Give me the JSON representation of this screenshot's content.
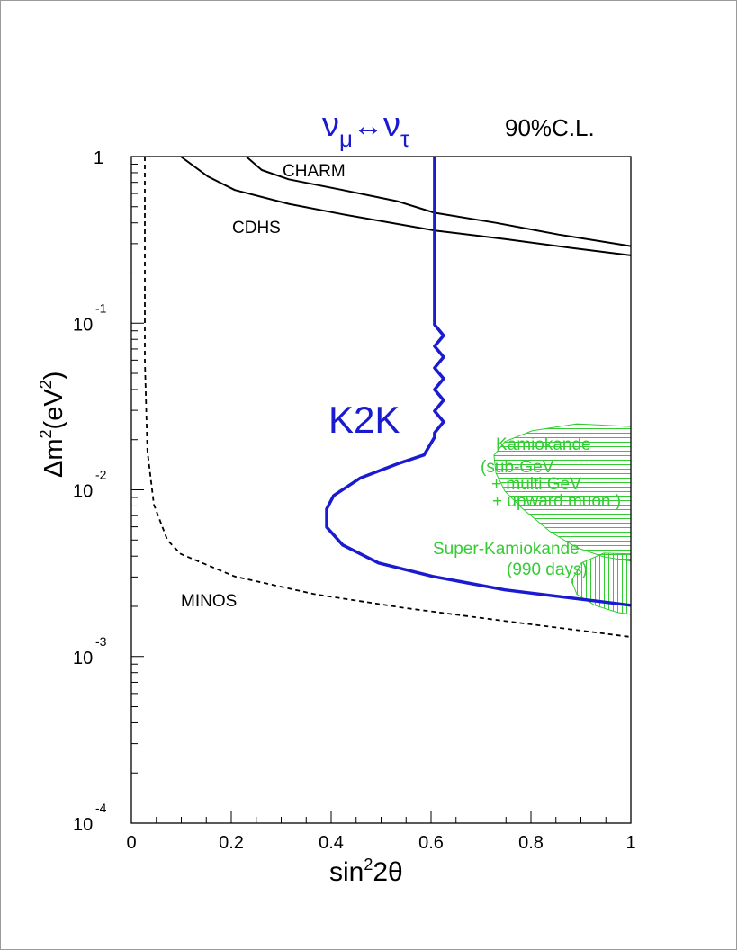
{
  "chart_data": {
    "type": "line",
    "title": "ν_μ↔ν_τ",
    "title_parts": {
      "nu1": "ν",
      "sub1": "μ",
      "arrow": "↔",
      "nu2": "ν",
      "sub2": "τ"
    },
    "confidence_label": "90%C.L.",
    "xlabel": "sin²2θ",
    "xlabel_parts": {
      "base": "sin",
      "sup": "2",
      "rest": "2θ"
    },
    "ylabel": "Δm²(eV²)",
    "ylabel_parts": {
      "a": "Δm",
      "sup1": "2",
      "b": "(eV",
      "sup2": "2",
      "c": ")"
    },
    "xlim": [
      0,
      1
    ],
    "ylim": [
      0.0001,
      1
    ],
    "yscale": "log",
    "grid": false,
    "x_ticks": [
      "0",
      "0.2",
      "0.4",
      "0.6",
      "0.8",
      "1"
    ],
    "y_ticks": [
      {
        "value": 1,
        "base": "1",
        "exp": ""
      },
      {
        "value": 0.1,
        "base": "10",
        "exp": "-1"
      },
      {
        "value": 0.01,
        "base": "10",
        "exp": "-2"
      },
      {
        "value": 0.001,
        "base": "10",
        "exp": "-3"
      },
      {
        "value": 0.0001,
        "base": "10",
        "exp": "-4"
      }
    ],
    "colors": {
      "k2k": "#1a1ad0",
      "kamiokande": "#33cc33",
      "axes": "#000000"
    },
    "series": [
      {
        "name": "CHARM",
        "style": "solid",
        "color": "#000000",
        "x": [
          0.23,
          0.261,
          0.315,
          0.423,
          0.532,
          0.607,
          0.73,
          0.856,
          1.0
        ],
        "y": [
          1.0,
          0.83,
          0.73,
          0.63,
          0.54,
          0.46,
          0.4,
          0.34,
          0.29
        ]
      },
      {
        "name": "CDHS",
        "style": "solid",
        "color": "#000000",
        "x": [
          0.099,
          0.153,
          0.207,
          0.315,
          0.423,
          0.607,
          0.748,
          0.892,
          1.0
        ],
        "y": [
          1.0,
          0.76,
          0.63,
          0.52,
          0.45,
          0.36,
          0.32,
          0.28,
          0.255
        ]
      },
      {
        "name": "MINOS",
        "style": "dashed",
        "color": "#000000",
        "x": [
          0.027,
          0.027,
          0.032,
          0.045,
          0.072,
          0.099,
          0.207,
          0.369,
          0.55,
          0.73,
          1.0
        ],
        "y": [
          1.0,
          0.0596,
          0.0172,
          0.00817,
          0.005,
          0.00412,
          0.00302,
          0.00236,
          0.00195,
          0.00166,
          0.00131
        ]
      },
      {
        "name": "K2K",
        "style": "solid-thick",
        "color": "#1a1ad0",
        "x": [
          0.607,
          0.607,
          0.625,
          0.607,
          0.625,
          0.607,
          0.625,
          0.607,
          0.625,
          0.607,
          0.625,
          0.607,
          0.607,
          0.586,
          0.532,
          0.459,
          0.405,
          0.391,
          0.391,
          0.423,
          0.495,
          0.604,
          0.748,
          1.0
        ],
        "y": [
          1.0,
          0.098,
          0.0843,
          0.0727,
          0.0626,
          0.0539,
          0.0465,
          0.04,
          0.0345,
          0.0297,
          0.0256,
          0.022,
          0.0207,
          0.0162,
          0.0143,
          0.0118,
          0.00923,
          0.00767,
          0.00598,
          0.00467,
          0.00364,
          0.00302,
          0.00251,
          0.00203
        ]
      }
    ],
    "regions": [
      {
        "name": "Kamiokande",
        "hatch": "horizontal",
        "color": "#33cc33",
        "label_lines": [
          "Kamiokande",
          "(sub-GeV",
          "+ multi GeV",
          "+ upward muon )"
        ],
        "x": [
          1.0,
          0.892,
          0.802,
          0.748,
          0.726,
          0.73,
          0.748,
          0.784,
          0.838,
          0.892,
          0.946,
          1.0
        ],
        "y": [
          0.024,
          0.0249,
          0.0226,
          0.0195,
          0.0161,
          0.0126,
          0.0098,
          0.00767,
          0.00562,
          0.00449,
          0.00396,
          0.00373
        ]
      },
      {
        "name": "Super-Kamiokande",
        "hatch": "vertical",
        "color": "#33cc33",
        "label_lines": [
          "Super-Kamiokande",
          "(990 days)"
        ],
        "x": [
          1.0,
          0.946,
          0.901,
          0.881,
          0.892,
          0.928,
          0.973,
          1.0
        ],
        "y": [
          0.00412,
          0.00417,
          0.00364,
          0.00284,
          0.00236,
          0.00203,
          0.00184,
          0.00179
        ]
      }
    ]
  }
}
